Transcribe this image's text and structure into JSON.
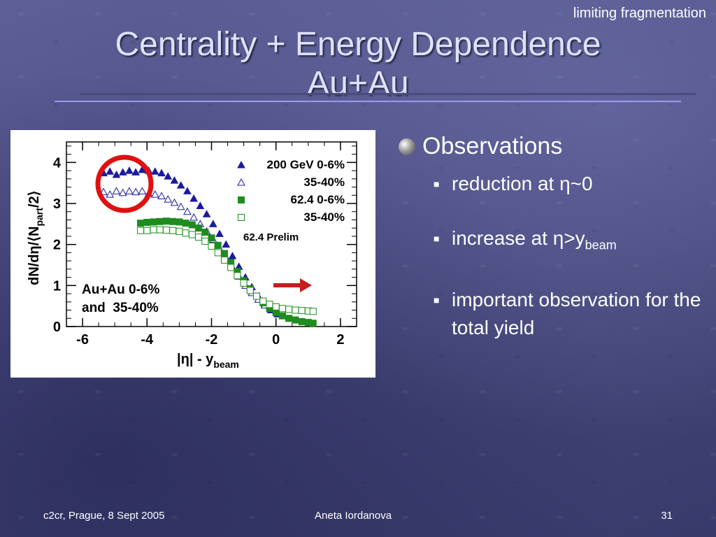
{
  "slide": {
    "corner_label": "limiting fragmentation",
    "title_line1": "Centrality + Energy Dependence",
    "title_line2": "Au+Au",
    "observations_heading": "Observations",
    "bullets": [
      {
        "text": "reduction at η~0"
      },
      {
        "text": "increase at η>y",
        "sub": "beam"
      },
      {
        "text": "important observation for the total yield"
      }
    ],
    "footer_left": "c2cr, Prague, 8 Sept 2005",
    "footer_center": "Aneta Iordanova",
    "footer_right": "31",
    "colors": {
      "title": "#dfe1ff",
      "rule_light": "#9a9cf0",
      "circle": "#e01010",
      "arrow": "#c41e1e"
    }
  },
  "chart_data": {
    "type": "scatter",
    "xlabel": "|η| - y",
    "xlabel_sub": "beam",
    "ylabel": "dN/dη/⟨N",
    "ylabel_sub": "part",
    "ylabel_end": "/2⟩",
    "xlim": [
      -6.5,
      2.5
    ],
    "ylim": [
      0,
      4.5
    ],
    "xticks": [
      -6,
      -4,
      -2,
      0,
      2
    ],
    "yticks": [
      0,
      1,
      2,
      3,
      4
    ],
    "annotation_line1": "Au+Au 0-6%",
    "annotation_line2": "and  35-40%",
    "prelim_label": "62.4 Prelim",
    "series": [
      {
        "name": "200 GeV 0-6%",
        "marker": "triangle-filled",
        "color": "#1a1aa0",
        "x": [
          -5.35,
          -5.15,
          -4.95,
          -4.75,
          -4.55,
          -4.35,
          -4.15,
          -3.95,
          -3.75,
          -3.55,
          -3.35,
          -3.15,
          -2.95,
          -2.75,
          -2.55,
          -2.35,
          -2.15,
          -1.95,
          -1.75,
          -1.55,
          -1.35,
          -1.15,
          -0.95,
          -0.75,
          -0.55,
          -0.35,
          -0.15,
          0.05
        ],
        "y": [
          3.74,
          3.78,
          3.7,
          3.76,
          3.8,
          3.76,
          3.82,
          3.8,
          3.78,
          3.74,
          3.66,
          3.56,
          3.44,
          3.3,
          3.12,
          2.94,
          2.74,
          2.5,
          2.26,
          2.0,
          1.72,
          1.46,
          1.2,
          0.96,
          0.74,
          0.56,
          0.4,
          0.3
        ]
      },
      {
        "name": "35-40%",
        "marker": "triangle-open",
        "color": "#1a1aa0",
        "x": [
          -5.35,
          -5.15,
          -4.95,
          -4.75,
          -4.55,
          -4.35,
          -4.15,
          -3.95,
          -3.75,
          -3.55,
          -3.35,
          -3.15,
          -2.95,
          -2.75,
          -2.55,
          -2.35,
          -2.15,
          -1.95,
          -1.75,
          -1.55,
          -1.35,
          -1.15,
          -0.95,
          -0.75,
          -0.55,
          -0.35,
          -0.15,
          0.05
        ],
        "y": [
          3.28,
          3.22,
          3.3,
          3.26,
          3.3,
          3.28,
          3.3,
          3.24,
          3.22,
          3.18,
          3.1,
          3.02,
          2.92,
          2.8,
          2.66,
          2.5,
          2.32,
          2.12,
          1.9,
          1.68,
          1.44,
          1.22,
          1.0,
          0.82,
          0.66,
          0.52,
          0.42,
          0.34
        ]
      },
      {
        "name": "62.4 0-6%",
        "marker": "square-filled",
        "color": "#1e8c1e",
        "x": [
          -4.2,
          -4.0,
          -3.8,
          -3.6,
          -3.4,
          -3.2,
          -3.0,
          -2.8,
          -2.6,
          -2.4,
          -2.2,
          -2.0,
          -1.8,
          -1.6,
          -1.4,
          -1.2,
          -1.0,
          -0.8,
          -0.6,
          -0.4,
          -0.2,
          0.0,
          0.2,
          0.4,
          0.6,
          0.8,
          1.0,
          1.15
        ],
        "y": [
          2.52,
          2.54,
          2.55,
          2.56,
          2.57,
          2.56,
          2.55,
          2.52,
          2.48,
          2.4,
          2.3,
          2.16,
          1.98,
          1.78,
          1.56,
          1.34,
          1.12,
          0.92,
          0.74,
          0.58,
          0.44,
          0.34,
          0.26,
          0.2,
          0.16,
          0.12,
          0.1,
          0.08
        ]
      },
      {
        "name": "35-40%",
        "marker": "square-open",
        "color": "#1e8c1e",
        "x": [
          -4.2,
          -4.0,
          -3.8,
          -3.6,
          -3.4,
          -3.2,
          -3.0,
          -2.8,
          -2.6,
          -2.4,
          -2.2,
          -2.0,
          -1.8,
          -1.6,
          -1.4,
          -1.2,
          -1.0,
          -0.8,
          -0.6,
          -0.4,
          -0.2,
          0.0,
          0.2,
          0.4,
          0.6,
          0.8,
          1.0,
          1.15
        ],
        "y": [
          2.34,
          2.34,
          2.36,
          2.36,
          2.35,
          2.34,
          2.32,
          2.28,
          2.24,
          2.18,
          2.08,
          1.96,
          1.8,
          1.62,
          1.44,
          1.24,
          1.06,
          0.88,
          0.74,
          0.62,
          0.54,
          0.48,
          0.44,
          0.42,
          0.4,
          0.39,
          0.38,
          0.37
        ]
      }
    ]
  }
}
